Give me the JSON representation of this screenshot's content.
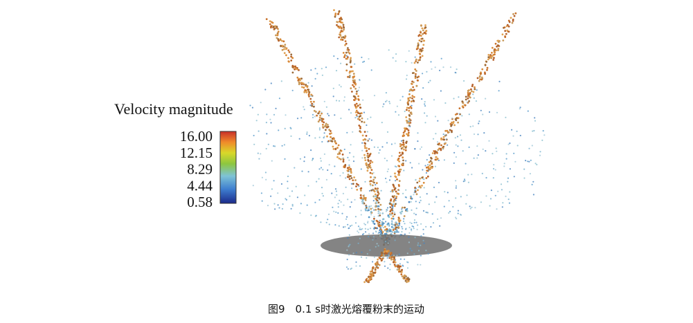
{
  "figure": {
    "legend": {
      "title": "Velocity magnitude",
      "ticks": [
        "16.00",
        "12.15",
        "8.29",
        "4.44",
        "0.58"
      ]
    },
    "caption": "图9　0.1 s时激光熔覆粉末的运动"
  }
}
